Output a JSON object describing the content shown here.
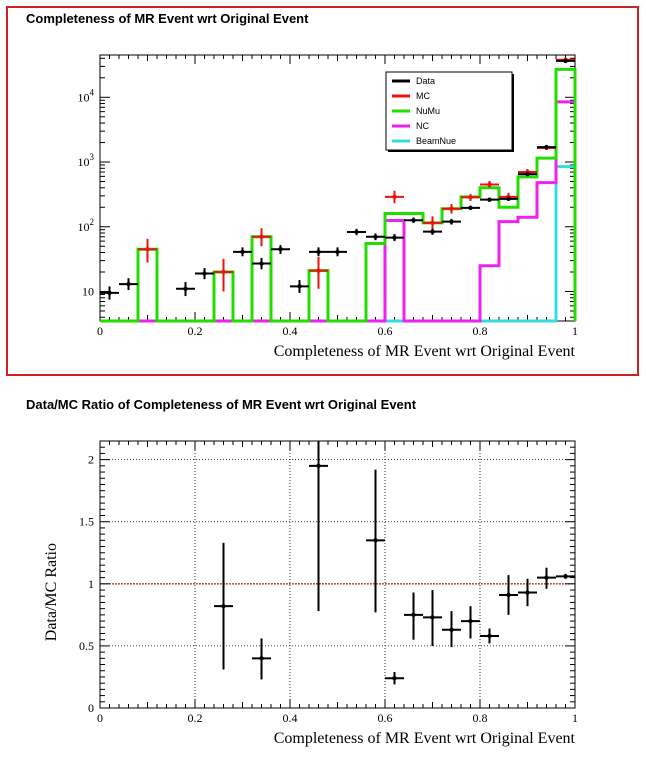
{
  "chart_data": [
    {
      "type": "line",
      "title": "Completeness of MR Event wrt Original Event",
      "xlabel": "Completeness of MR Event wrt Original Event",
      "ylabel": "",
      "xlim": [
        0,
        1
      ],
      "ylim": [
        3.5,
        45000
      ],
      "yscale": "log",
      "x_ticks": [
        "0",
        "0.2",
        "0.4",
        "0.6",
        "0.8",
        "1"
      ],
      "y_ticks": [
        "10",
        "10^2",
        "10^3",
        "10^4"
      ],
      "grid": false,
      "legend_position": "top-right",
      "legend": [
        "Data",
        "MC",
        "NuMu",
        "NC",
        "BeamNue"
      ],
      "colors": {
        "Data": "#000000",
        "MC": "#ee1111",
        "NuMu": "#22dd00",
        "NC": "#ee22ee",
        "BeamNue": "#33dddd"
      },
      "bin_edges": [
        0.0,
        0.04,
        0.08,
        0.12,
        0.16,
        0.2,
        0.24,
        0.28,
        0.32,
        0.36,
        0.4,
        0.44,
        0.48,
        0.52,
        0.56,
        0.6,
        0.64,
        0.68,
        0.72,
        0.76,
        0.8,
        0.84,
        0.88,
        0.92,
        0.96,
        1.0
      ],
      "series": [
        {
          "name": "Data",
          "kind": "points",
          "points": [
            {
              "x": 0.02,
              "y": 9.5,
              "lo": 7.5,
              "hi": 12
            },
            {
              "x": 0.06,
              "y": 13,
              "lo": 10.5,
              "hi": 16
            },
            {
              "x": 0.18,
              "y": 11,
              "lo": 8.5,
              "hi": 14
            },
            {
              "x": 0.22,
              "y": 19,
              "lo": 15.5,
              "hi": 23
            },
            {
              "x": 0.3,
              "y": 41,
              "lo": 35,
              "hi": 48
            },
            {
              "x": 0.34,
              "y": 27,
              "lo": 22,
              "hi": 33
            },
            {
              "x": 0.38,
              "y": 45,
              "lo": 38,
              "hi": 52
            },
            {
              "x": 0.42,
              "y": 12,
              "lo": 9.5,
              "hi": 15
            },
            {
              "x": 0.46,
              "y": 41,
              "lo": 35,
              "hi": 48
            },
            {
              "x": 0.5,
              "y": 41,
              "lo": 35,
              "hi": 48
            },
            {
              "x": 0.54,
              "y": 83,
              "lo": 74,
              "hi": 93
            },
            {
              "x": 0.58,
              "y": 70,
              "lo": 62,
              "hi": 79
            },
            {
              "x": 0.62,
              "y": 68,
              "lo": 60,
              "hi": 77
            },
            {
              "x": 0.66,
              "y": 126,
              "lo": 114,
              "hi": 139
            },
            {
              "x": 0.7,
              "y": 84,
              "lo": 75,
              "hi": 94
            },
            {
              "x": 0.74,
              "y": 120,
              "lo": 108,
              "hi": 132
            },
            {
              "x": 0.78,
              "y": 196,
              "lo": 182,
              "hi": 211
            },
            {
              "x": 0.82,
              "y": 262,
              "lo": 246,
              "hi": 279
            },
            {
              "x": 0.86,
              "y": 270,
              "lo": 253,
              "hi": 287
            },
            {
              "x": 0.9,
              "y": 650,
              "lo": 624,
              "hi": 676
            },
            {
              "x": 0.94,
              "y": 1700,
              "lo": 1658,
              "hi": 1742
            },
            {
              "x": 0.98,
              "y": 36500,
              "lo": 36300,
              "hi": 36700
            }
          ]
        },
        {
          "name": "MC",
          "kind": "points",
          "points": [
            {
              "x": 0.1,
              "y": 45,
              "lo": 28,
              "hi": 65
            },
            {
              "x": 0.26,
              "y": 20,
              "lo": 10,
              "hi": 32
            },
            {
              "x": 0.34,
              "y": 70,
              "lo": 50,
              "hi": 95
            },
            {
              "x": 0.46,
              "y": 21,
              "lo": 11,
              "hi": 34
            },
            {
              "x": 0.62,
              "y": 290,
              "lo": 230,
              "hi": 360
            },
            {
              "x": 0.7,
              "y": 115,
              "lo": 90,
              "hi": 145
            },
            {
              "x": 0.74,
              "y": 190,
              "lo": 160,
              "hi": 225
            },
            {
              "x": 0.78,
              "y": 285,
              "lo": 250,
              "hi": 320
            },
            {
              "x": 0.82,
              "y": 450,
              "lo": 400,
              "hi": 510
            },
            {
              "x": 0.86,
              "y": 290,
              "lo": 250,
              "hi": 335
            },
            {
              "x": 0.9,
              "y": 700,
              "lo": 630,
              "hi": 780
            },
            {
              "x": 0.94,
              "y": 1650,
              "lo": 1550,
              "hi": 1750
            },
            {
              "x": 0.98,
              "y": 38000,
              "lo": 36500,
              "hi": 39500
            }
          ]
        },
        {
          "name": "NuMu",
          "kind": "hist",
          "values": [
            0,
            0,
            45,
            0,
            0,
            0,
            20,
            0,
            70,
            0,
            0,
            21,
            0,
            0,
            55,
            160,
            160,
            115,
            190,
            290,
            400,
            200,
            590,
            1150,
            27000
          ]
        },
        {
          "name": "NC",
          "kind": "hist",
          "values": [
            0,
            0,
            0,
            0,
            0,
            0,
            0,
            0,
            0,
            0,
            0,
            0,
            0,
            0,
            0,
            125,
            0,
            0,
            0,
            0,
            25,
            120,
            140,
            480,
            8500
          ]
        },
        {
          "name": "BeamNue",
          "kind": "hist",
          "values": [
            0,
            0,
            0,
            0,
            0,
            0,
            0,
            0,
            0,
            0,
            0,
            0,
            0,
            0,
            0,
            0,
            0,
            0,
            0,
            0,
            0,
            0,
            0,
            0,
            850
          ]
        }
      ]
    },
    {
      "type": "scatter",
      "title": "Data/MC Ratio of Completeness of MR Event wrt Original Event",
      "xlabel": "Completeness of MR Event wrt Original Event",
      "ylabel": "Data/MC Ratio",
      "xlim": [
        0,
        1
      ],
      "ylim": [
        0,
        2.15
      ],
      "x_ticks": [
        "0",
        "0.2",
        "0.4",
        "0.6",
        "0.8",
        "1"
      ],
      "y_ticks": [
        "0",
        "0.5",
        "1",
        "1.5",
        "2"
      ],
      "grid": true,
      "reference_line": 1,
      "series": [
        {
          "name": "",
          "points": [
            {
              "x": 0.26,
              "y": 0.82,
              "lo": 0.31,
              "hi": 1.33
            },
            {
              "x": 0.34,
              "y": 0.4,
              "lo": 0.23,
              "hi": 0.56
            },
            {
              "x": 0.46,
              "y": 1.95,
              "lo": 0.78,
              "hi": 2.15
            },
            {
              "x": 0.58,
              "y": 1.35,
              "lo": 0.77,
              "hi": 1.92
            },
            {
              "x": 0.62,
              "y": 0.24,
              "lo": 0.19,
              "hi": 0.29
            },
            {
              "x": 0.66,
              "y": 0.75,
              "lo": 0.55,
              "hi": 0.93
            },
            {
              "x": 0.7,
              "y": 0.73,
              "lo": 0.5,
              "hi": 0.95
            },
            {
              "x": 0.74,
              "y": 0.63,
              "lo": 0.49,
              "hi": 0.78
            },
            {
              "x": 0.78,
              "y": 0.7,
              "lo": 0.56,
              "hi": 0.82
            },
            {
              "x": 0.82,
              "y": 0.58,
              "lo": 0.52,
              "hi": 0.64
            },
            {
              "x": 0.86,
              "y": 0.91,
              "lo": 0.75,
              "hi": 1.07
            },
            {
              "x": 0.9,
              "y": 0.93,
              "lo": 0.82,
              "hi": 1.04
            },
            {
              "x": 0.94,
              "y": 1.05,
              "lo": 0.96,
              "hi": 1.13
            },
            {
              "x": 0.98,
              "y": 1.06,
              "lo": 1.04,
              "hi": 1.08
            }
          ]
        }
      ]
    }
  ]
}
